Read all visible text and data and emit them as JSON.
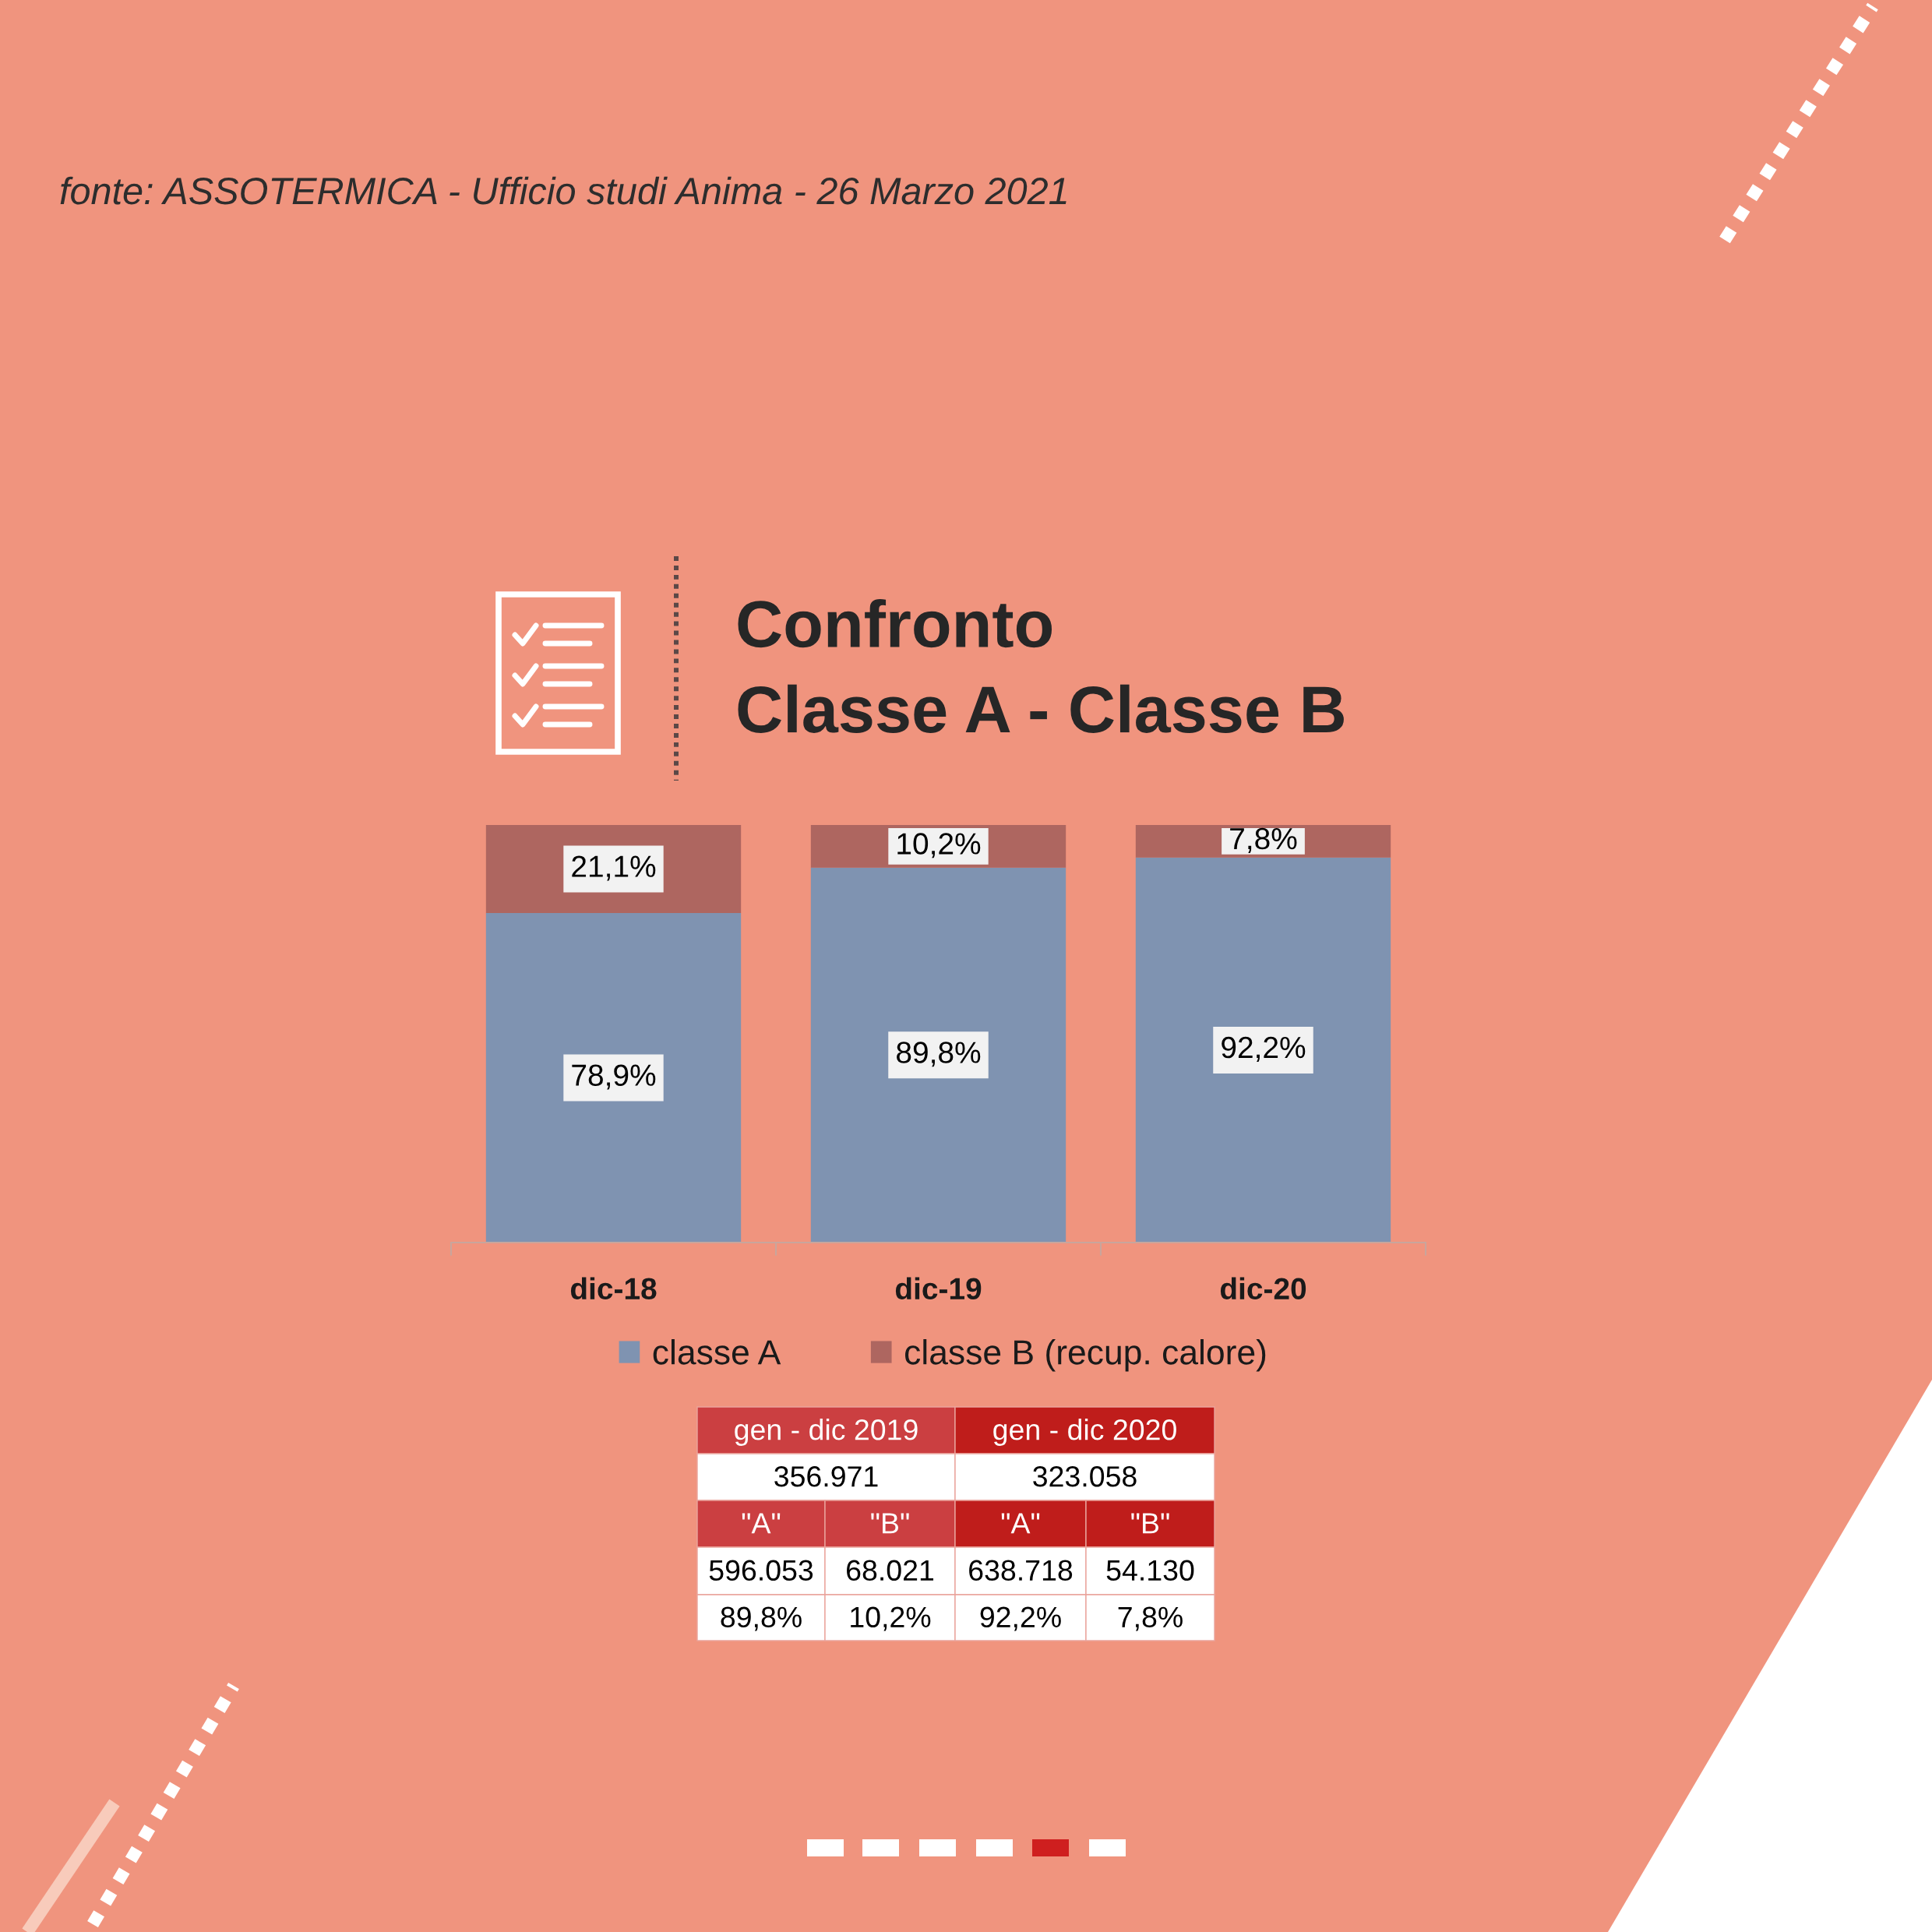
{
  "chart_data": {
    "type": "bar",
    "title": "Confronto\nClasse A - Classe B",
    "categories": [
      "dic-18",
      "dic-19",
      "dic-20"
    ],
    "stacked": true,
    "series": [
      {
        "name": "classe A",
        "color": "#7f93b1",
        "values": [
          78.9,
          89.8,
          92.2
        ],
        "value_labels": [
          "78,9%",
          "89,8%",
          "92,2%"
        ]
      },
      {
        "name": "classe B (recup. calore)",
        "color": "#ae6660",
        "values": [
          21.1,
          10.2,
          7.8
        ],
        "value_labels": [
          "21,1%",
          "10,2%",
          "7,8%"
        ]
      }
    ],
    "ylim": [
      0,
      100
    ],
    "tick_labels": "x",
    "legend": "bottom",
    "annotations": [
      "fonte: ASSOTERMICA - Ufficio studi Anima - 26 Marzo 2021",
      "gen - dic 2019",
      "gen - dic 2020",
      "356.971",
      "323.058",
      "\"A\"",
      "\"B\"",
      "\"A\"",
      "\"B\"",
      "596.053",
      "68.021",
      "638.718",
      "54.130",
      "89,8%",
      "10,2%",
      "92,2%",
      "7,8%"
    ]
  }
}
